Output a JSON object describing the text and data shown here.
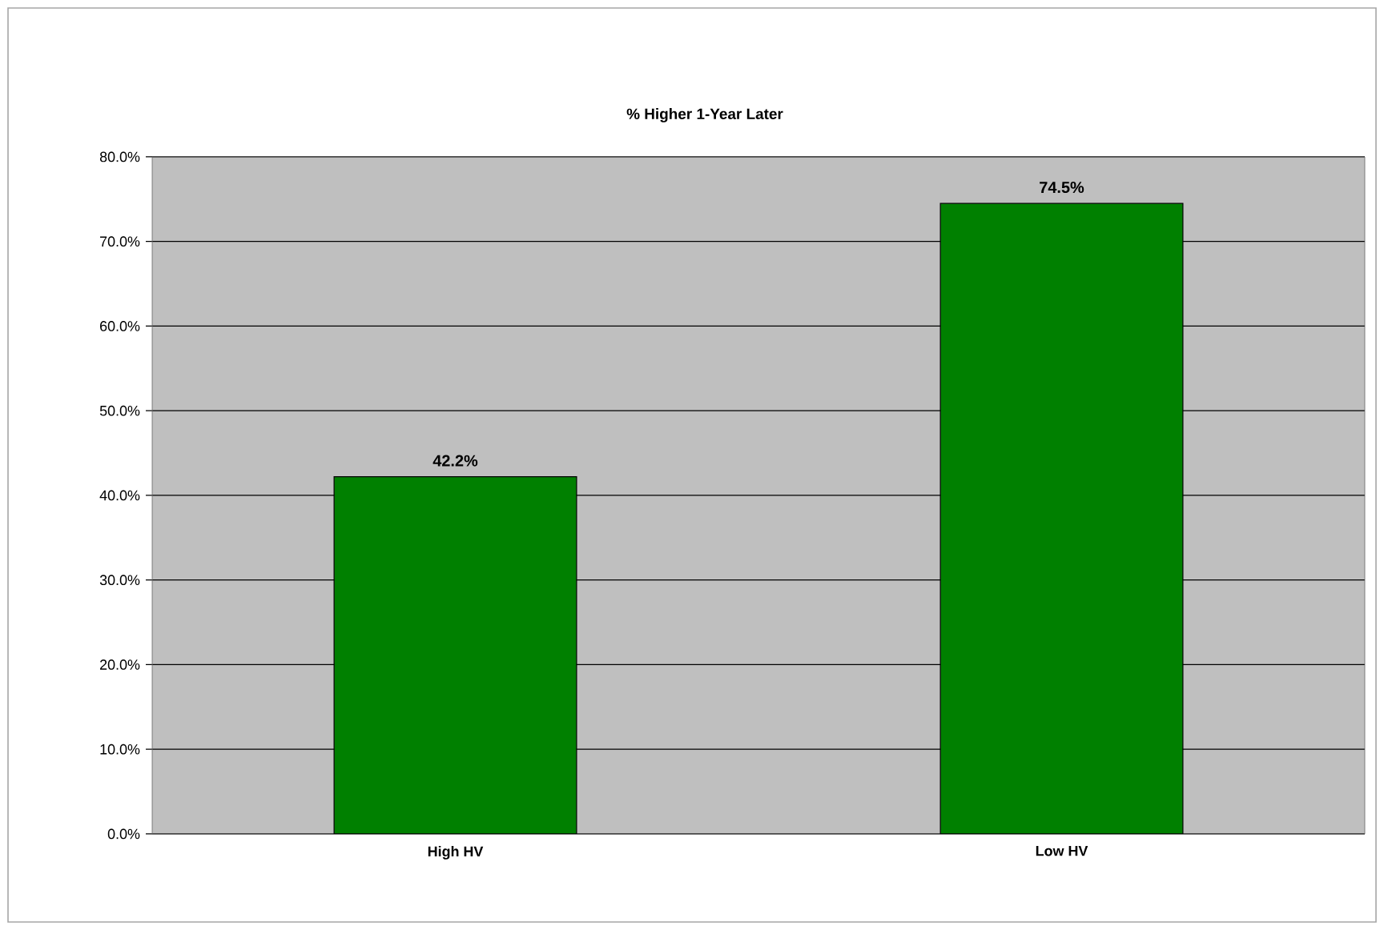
{
  "chart_data": {
    "type": "bar",
    "title": "% Higher 1-Year Later",
    "categories": [
      "High HV",
      "Low HV"
    ],
    "values": [
      42.2,
      74.5
    ],
    "value_labels": [
      "42.2%",
      "74.5%"
    ],
    "color": "#008000",
    "ylim": [
      0,
      80
    ],
    "yticks": [
      {
        "value": 0,
        "label": "0.0%"
      },
      {
        "value": 10,
        "label": "10.0%"
      },
      {
        "value": 20,
        "label": "20.0%"
      },
      {
        "value": 30,
        "label": "30.0%"
      },
      {
        "value": 40,
        "label": "40.0%"
      },
      {
        "value": 50,
        "label": "50.0%"
      },
      {
        "value": 60,
        "label": "60.0%"
      },
      {
        "value": 70,
        "label": "70.0%"
      },
      {
        "value": 80,
        "label": "80.0%"
      }
    ],
    "grid": "y"
  }
}
